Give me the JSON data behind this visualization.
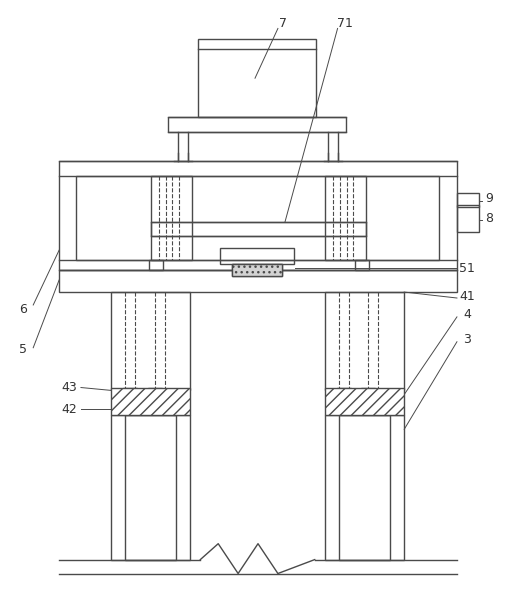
{
  "figure_width": 5.18,
  "figure_height": 5.99,
  "dpi": 100,
  "line_color": "#4a4a4a",
  "bg_color": "#ffffff",
  "lw": 1.0,
  "fontsize": 9
}
